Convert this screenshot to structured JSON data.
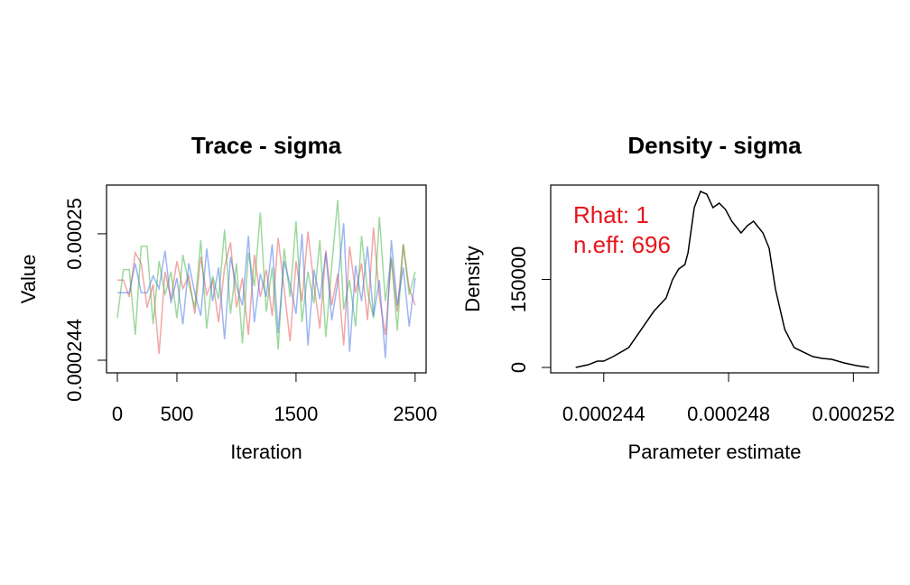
{
  "chart_data": [
    {
      "type": "line",
      "title": "Trace - sigma",
      "xlabel": "Iteration",
      "ylabel": "Value",
      "x": [
        0,
        50,
        100,
        150,
        200,
        250,
        300,
        350,
        400,
        450,
        500,
        550,
        600,
        650,
        700,
        750,
        800,
        850,
        900,
        950,
        1000,
        1050,
        1100,
        1150,
        1200,
        1250,
        1300,
        1350,
        1400,
        1450,
        1500,
        1550,
        1600,
        1650,
        1700,
        1750,
        1800,
        1850,
        1900,
        1950,
        2000,
        2050,
        2100,
        2150,
        2200,
        2250,
        2300,
        2350,
        2400,
        2450,
        2500
      ],
      "series": [
        {
          "color": "rgba(230,80,80,0.5)",
          "values": [
            0.0002478,
            0.0002478,
            0.000247,
            0.0002491,
            0.0002486,
            0.0002465,
            0.0002476,
            0.0002443,
            0.0002482,
            0.0002469,
            0.0002487,
            0.0002474,
            0.000248,
            0.0002462,
            0.0002489,
            0.0002471,
            0.0002478,
            0.0002458,
            0.0002484,
            0.0002496,
            0.0002465,
            0.0002479,
            0.0002452,
            0.000249,
            0.000247,
            0.0002483,
            0.0002461,
            0.0002498,
            0.0002474,
            0.0002449,
            0.0002487,
            0.0002468,
            0.0002501,
            0.0002476,
            0.0002455,
            0.0002492,
            0.0002466,
            0.0002481,
            0.0002447,
            0.0002494,
            0.0002472,
            0.0002486,
            0.0002459,
            0.0002503,
            0.000247,
            0.0002452,
            0.0002488,
            0.0002463,
            0.0002495,
            0.0002474,
            0.0002466
          ]
        },
        {
          "color": "rgba(60,180,60,0.5)",
          "values": [
            0.000246,
            0.0002483,
            0.0002483,
            0.0002452,
            0.0002494,
            0.0002494,
            0.0002457,
            0.0002487,
            0.0002471,
            0.0002482,
            0.000246,
            0.000249,
            0.0002476,
            0.0002465,
            0.0002497,
            0.0002455,
            0.000248,
            0.0002469,
            0.0002502,
            0.0002462,
            0.0002486,
            0.0002448,
            0.0002491,
            0.0002475,
            0.000251,
            0.0002463,
            0.0002484,
            0.0002445,
            0.0002493,
            0.000247,
            0.0002506,
            0.0002458,
            0.0002482,
            0.0002467,
            0.0002497,
            0.0002451,
            0.0002485,
            0.0002516,
            0.0002464,
            0.0002478,
            0.0002456,
            0.0002499,
            0.0002473,
            0.000246,
            0.0002508,
            0.0002468,
            0.0002489,
            0.0002454,
            0.0002495,
            0.0002471,
            0.0002482
          ]
        },
        {
          "color": "rgba(60,110,230,0.5)",
          "values": [
            0.0002472,
            0.0002472,
            0.0002472,
            0.0002486,
            0.0002472,
            0.0002472,
            0.000248,
            0.0002474,
            0.0002492,
            0.0002467,
            0.0002479,
            0.0002457,
            0.0002486,
            0.0002472,
            0.0002461,
            0.0002493,
            0.0002468,
            0.0002484,
            0.000245,
            0.0002489,
            0.0002475,
            0.0002466,
            0.0002499,
            0.0002458,
            0.0002481,
            0.000247,
            0.0002495,
            0.0002453,
            0.0002487,
            0.0002476,
            0.0002462,
            0.00025,
            0.0002447,
            0.0002483,
            0.0002469,
            0.0002491,
            0.0002459,
            0.0002477,
            0.0002505,
            0.0002444,
            0.0002485,
            0.0002468,
            0.0002494,
            0.0002461,
            0.0002478,
            0.0002441,
            0.0002497,
            0.0002466,
            0.0002484,
            0.0002456,
            0.0002479
          ]
        }
      ],
      "xlim": [
        -91,
        2592
      ],
      "xticks": [
        0,
        500,
        1500,
        2500
      ],
      "ylim": [
        0.0002434,
        0.00025231
      ],
      "yticks": [
        0.000244,
        0.00025
      ]
    },
    {
      "type": "line",
      "title": "Density - sigma",
      "xlabel": "Parameter estimate",
      "ylabel": "Density",
      "x": [
        0.0002431,
        0.0002435,
        0.0002438,
        0.000244,
        0.0002443,
        0.0002448,
        0.0002452,
        0.0002456,
        0.000246,
        0.0002462,
        0.0002464,
        0.0002466,
        0.0002467,
        0.0002469,
        0.0002471,
        0.0002473,
        0.0002475,
        0.0002477,
        0.0002479,
        0.0002481,
        0.0002484,
        0.0002486,
        0.0002488,
        0.0002491,
        0.0002493,
        0.0002495,
        0.0002498,
        0.0002501,
        0.0002504,
        0.0002507,
        0.000251,
        0.0002513,
        0.0002517,
        0.0002521,
        0.0002525
      ],
      "series": [
        {
          "color": "#000000",
          "values": [
            0,
            4615,
            10770,
            10770,
            18460,
            33850,
            64620,
            95380,
            118460,
            149230,
            167690,
            175380,
            195380,
            272310,
            300000,
            295380,
            272310,
            280000,
            269230,
            249230,
            229230,
            241540,
            249230,
            229230,
            203080,
            133850,
            64620,
            33850,
            26150,
            18460,
            15380,
            13850,
            7690,
            3080,
            0
          ]
        }
      ],
      "xlim": [
        0.0002423,
        0.0002528
      ],
      "xticks": [
        0.000244,
        0.000248,
        0.000252
      ],
      "ylim": [
        -9200,
        310800
      ],
      "yticks": [
        0,
        150000
      ],
      "annotations": [
        "Rhat: 1",
        "n.eff: 696"
      ],
      "annotation_color": "#e8141c"
    }
  ]
}
